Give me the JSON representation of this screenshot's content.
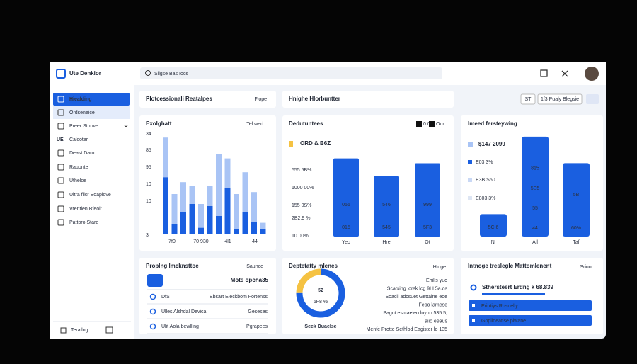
{
  "header": {
    "logo": "Ute Denkior",
    "search": "Sligse Bas Iocs"
  },
  "sidebar": {
    "items": [
      "Hiealding",
      "Ordseneice",
      "Preer Stoove",
      "Calcoter",
      "Deast Daro",
      "Rauonte",
      "Utheloe",
      "Ultra flicr Eoaplove",
      "Vrentien Bfeolt",
      "Pattoro Stare"
    ],
    "calc_icon": "UE",
    "footer": "Terallng"
  },
  "toolbar": {
    "panel1_title": "Plotcessionali Reatalpes",
    "panel1_action": "Flope",
    "panel2_title": "Hnighe Hlorbuntter",
    "button1": "ST",
    "button2": "1f3 Pualy Blegsie"
  },
  "chart_a": {
    "type": "bar",
    "title": "Exolghatt",
    "dropdown": "Tel wed",
    "axis_labels": [
      "34",
      "85",
      "95",
      "10",
      "10",
      "3"
    ],
    "categories": [
      "7f0",
      "70 930",
      "4l1",
      "44"
    ],
    "ylim": [
      0,
      100
    ],
    "series": [
      {
        "color": "#1a5fe0",
        "values": [
          57,
          10,
          22,
          30,
          6,
          28,
          18,
          46,
          5,
          22,
          12,
          5
        ]
      },
      {
        "color": "#a9c4f5",
        "values": [
          40,
          30,
          30,
          18,
          24,
          20,
          62,
          30,
          35,
          40,
          30,
          6
        ]
      }
    ]
  },
  "chart_b": {
    "type": "bar",
    "title": "Dedutuntees",
    "legend": [
      "0.0",
      "Our"
    ],
    "subtitle": "ORD & B6Z",
    "axis_labels": [
      "555 5B%",
      "1000 00%",
      "155 0S%",
      "2B2.9 %",
      "10 00%"
    ],
    "categories": [
      "Yeo",
      "Hre",
      "Ot"
    ],
    "values": [
      80,
      62,
      75
    ],
    "top_labels": [
      "055",
      "546",
      "999"
    ],
    "bottom_labels": [
      "015",
      "545",
      "5F3"
    ],
    "ylim": [
      0,
      100
    ],
    "color": "#1a5fe0"
  },
  "chart_c": {
    "type": "bar",
    "title": "Imeed fersteywing",
    "headline": "$147 2099",
    "legend": [
      "E03 3%",
      "E3B.S50",
      "E803.3%"
    ],
    "categories": [
      "Nl",
      "All",
      "Taf"
    ],
    "values": [
      22,
      98,
      72
    ],
    "bar_labels": [
      [
        "5C.6"
      ],
      [
        "815",
        "5E5",
        "55",
        "44"
      ],
      [
        "5B",
        "60%"
      ]
    ],
    "ylim": [
      0,
      100
    ],
    "color": "#1a5fe0"
  },
  "list_d": {
    "title": "Proplng lmcknsttoe",
    "dropdown": "Saunce",
    "search_value": "Mots opcha35",
    "rows": [
      [
        "DfS",
        "Ebsart Eleckbom Fortenss"
      ],
      [
        "Ulles Alshdal Devica",
        "Geseses"
      ],
      [
        "Ulit Aola bewlling",
        "Pgrapees"
      ]
    ]
  },
  "donut_e": {
    "title": "Deptetatty mlenes",
    "dropdown": "Hioge",
    "center": "52",
    "sub": "5F8 %",
    "caption": "Seek Duaelse",
    "values": [
      75,
      25
    ],
    "colors": [
      "#1a5fe0",
      "#f5c242"
    ],
    "lines": [
      "Ehilis yuo",
      "Scatsing lorsk lcg 9LI 5a.os",
      "Soacil adcsuet Gettaine eoe",
      "Fepo lamese",
      "Pagnt esrcaeleo loyhn 535.5;",
      "aiio eeaus",
      "Menfe Protte Sethlod Eagister lo 135"
    ]
  },
  "panel_f": {
    "title": "Intnoge tresleglc Mattomlenent",
    "dropdown": "Sriuor",
    "radio": "Sthersteert Erdng k 68.839",
    "buttons": [
      "Eriutiys Rusnelly",
      "Gopiloeatlse plwane"
    ]
  }
}
